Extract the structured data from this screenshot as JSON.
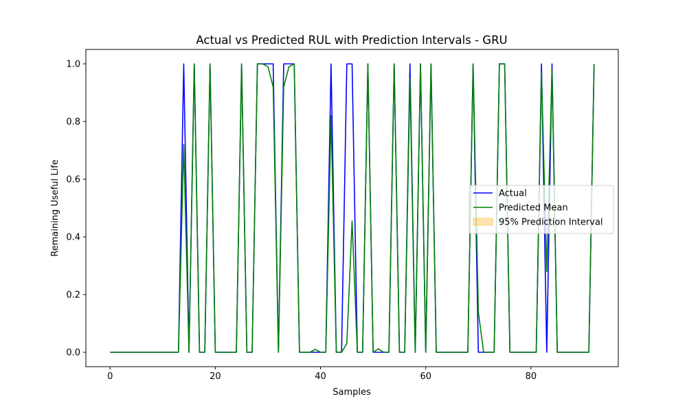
{
  "chart_data": {
    "type": "line",
    "title": "Actual vs Predicted RUL with Prediction Intervals - GRU",
    "xlabel": "Samples",
    "ylabel": "Remaining Useful Life",
    "xlim": [
      -4.6,
      96.6
    ],
    "ylim": [
      -0.05,
      1.05
    ],
    "x_ticks": [
      0,
      20,
      40,
      60,
      80
    ],
    "y_ticks": [
      0.0,
      0.2,
      0.4,
      0.6,
      0.8,
      1.0
    ],
    "x_tick_labels": [
      "0",
      "20",
      "40",
      "60",
      "80"
    ],
    "y_tick_labels": [
      "0.0",
      "0.2",
      "0.4",
      "0.6",
      "0.8",
      "1.0"
    ],
    "grid": false,
    "legend_position": "center-right",
    "series": [
      {
        "name": "Actual",
        "color": "#0000ff",
        "x": [
          0,
          1,
          2,
          3,
          4,
          5,
          6,
          7,
          8,
          9,
          10,
          11,
          12,
          13,
          14,
          15,
          16,
          17,
          18,
          19,
          20,
          21,
          22,
          23,
          24,
          25,
          26,
          27,
          28,
          29,
          30,
          31,
          32,
          33,
          34,
          35,
          36,
          37,
          38,
          39,
          40,
          41,
          42,
          43,
          44,
          45,
          46,
          47,
          48,
          49,
          50,
          51,
          52,
          53,
          54,
          55,
          56,
          57,
          58,
          59,
          60,
          61,
          62,
          63,
          64,
          65,
          66,
          67,
          68,
          69,
          70,
          71,
          72,
          73,
          74,
          75,
          76,
          77,
          78,
          79,
          80,
          81,
          82,
          83,
          84,
          85,
          86,
          87,
          88,
          89,
          90,
          91,
          92
        ],
        "values": [
          0,
          0,
          0,
          0,
          0,
          0,
          0,
          0,
          0,
          0,
          0,
          0,
          0,
          0,
          1,
          0,
          1,
          0,
          0,
          1,
          0,
          0,
          0,
          0,
          0,
          1,
          0,
          0,
          1,
          1,
          1,
          1,
          0,
          1,
          1,
          1,
          0,
          0,
          0,
          0,
          0,
          0,
          1,
          0,
          0,
          1,
          1,
          0,
          0,
          1,
          0,
          0,
          0,
          0,
          1,
          0,
          0,
          1,
          0,
          1,
          0,
          1,
          0,
          0,
          0,
          0,
          0,
          0,
          0,
          1,
          0,
          0,
          0,
          0,
          1,
          1,
          0,
          0,
          0,
          0,
          0,
          0,
          1,
          0,
          1,
          0,
          0,
          0,
          0,
          0,
          0,
          0,
          1
        ]
      },
      {
        "name": "Predicted Mean",
        "color": "#008000",
        "x": [
          0,
          1,
          2,
          3,
          4,
          5,
          6,
          7,
          8,
          9,
          10,
          11,
          12,
          13,
          14,
          15,
          16,
          17,
          18,
          19,
          20,
          21,
          22,
          23,
          24,
          25,
          26,
          27,
          28,
          29,
          30,
          31,
          32,
          33,
          34,
          35,
          36,
          37,
          38,
          39,
          40,
          41,
          42,
          43,
          44,
          45,
          46,
          47,
          48,
          49,
          50,
          51,
          52,
          53,
          54,
          55,
          56,
          57,
          58,
          59,
          60,
          61,
          62,
          63,
          64,
          65,
          66,
          67,
          68,
          69,
          70,
          71,
          72,
          73,
          74,
          75,
          76,
          77,
          78,
          79,
          80,
          81,
          82,
          83,
          84,
          85,
          86,
          87,
          88,
          89,
          90,
          91,
          92
        ],
        "values": [
          0,
          0,
          0,
          0,
          0,
          0,
          0,
          0,
          0,
          0,
          0,
          0,
          0,
          0,
          0.72,
          0,
          1,
          0,
          0,
          1,
          0,
          0,
          0,
          0,
          0,
          1,
          0,
          0,
          1,
          1,
          0.99,
          0.92,
          0,
          0.92,
          0.99,
          1,
          0,
          0,
          0,
          0.01,
          0,
          0,
          0.82,
          0,
          0,
          0.03,
          0.455,
          0,
          0,
          1,
          0,
          0.012,
          0,
          0,
          1,
          0,
          0,
          0.95,
          0,
          1,
          0,
          1,
          0,
          0,
          0,
          0,
          0,
          0,
          0,
          1,
          0.14,
          0,
          0,
          0,
          1,
          1,
          0,
          0,
          0,
          0,
          0,
          0,
          0.97,
          0.28,
          0.98,
          0,
          0,
          0,
          0,
          0,
          0,
          0,
          1
        ]
      }
    ],
    "interval": {
      "name": "95% Prediction Interval",
      "color": "#ffa500",
      "opacity": 0.3
    }
  }
}
